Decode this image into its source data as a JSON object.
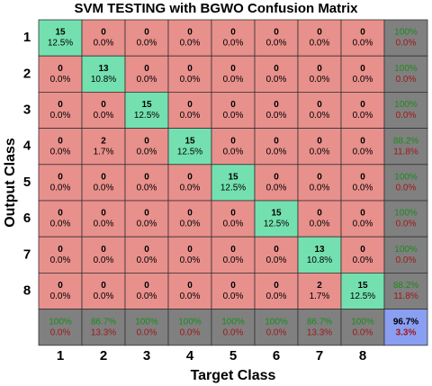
{
  "chart_data": {
    "type": "confusion_matrix",
    "title": "SVM TESTING with BGWO Confusion Matrix",
    "xlabel": "Target Class",
    "ylabel": "Output Class",
    "categories": [
      "1",
      "2",
      "3",
      "4",
      "5",
      "6",
      "7",
      "8"
    ],
    "counts": [
      [
        15,
        0,
        0,
        0,
        0,
        0,
        0,
        0
      ],
      [
        0,
        13,
        0,
        0,
        0,
        0,
        0,
        0
      ],
      [
        0,
        0,
        15,
        0,
        0,
        0,
        0,
        0
      ],
      [
        0,
        2,
        0,
        15,
        0,
        0,
        0,
        0
      ],
      [
        0,
        0,
        0,
        0,
        15,
        0,
        0,
        0
      ],
      [
        0,
        0,
        0,
        0,
        0,
        15,
        0,
        0
      ],
      [
        0,
        0,
        0,
        0,
        0,
        0,
        13,
        0
      ],
      [
        0,
        0,
        0,
        0,
        0,
        0,
        2,
        15
      ]
    ],
    "percents": [
      [
        "12.5%",
        "0.0%",
        "0.0%",
        "0.0%",
        "0.0%",
        "0.0%",
        "0.0%",
        "0.0%"
      ],
      [
        "0.0%",
        "10.8%",
        "0.0%",
        "0.0%",
        "0.0%",
        "0.0%",
        "0.0%",
        "0.0%"
      ],
      [
        "0.0%",
        "0.0%",
        "12.5%",
        "0.0%",
        "0.0%",
        "0.0%",
        "0.0%",
        "0.0%"
      ],
      [
        "0.0%",
        "1.7%",
        "0.0%",
        "12.5%",
        "0.0%",
        "0.0%",
        "0.0%",
        "0.0%"
      ],
      [
        "0.0%",
        "0.0%",
        "0.0%",
        "0.0%",
        "12.5%",
        "0.0%",
        "0.0%",
        "0.0%"
      ],
      [
        "0.0%",
        "0.0%",
        "0.0%",
        "0.0%",
        "0.0%",
        "12.5%",
        "0.0%",
        "0.0%"
      ],
      [
        "0.0%",
        "0.0%",
        "0.0%",
        "0.0%",
        "0.0%",
        "0.0%",
        "10.8%",
        "0.0%"
      ],
      [
        "0.0%",
        "0.0%",
        "0.0%",
        "0.0%",
        "0.0%",
        "0.0%",
        "1.7%",
        "12.5%"
      ]
    ],
    "row_summary": [
      [
        "100%",
        "0.0%"
      ],
      [
        "100%",
        "0.0%"
      ],
      [
        "100%",
        "0.0%"
      ],
      [
        "88.2%",
        "11.8%"
      ],
      [
        "100%",
        "0.0%"
      ],
      [
        "100%",
        "0.0%"
      ],
      [
        "100%",
        "0.0%"
      ],
      [
        "88.2%",
        "11.8%"
      ]
    ],
    "col_summary": [
      [
        "100%",
        "0.0%"
      ],
      [
        "86.7%",
        "13.3%"
      ],
      [
        "100%",
        "0.0%"
      ],
      [
        "100%",
        "0.0%"
      ],
      [
        "100%",
        "0.0%"
      ],
      [
        "100%",
        "0.0%"
      ],
      [
        "86.7%",
        "13.3%"
      ],
      [
        "100%",
        "0.0%"
      ]
    ],
    "total": [
      "96.7%",
      "3.3%"
    ],
    "colors": {
      "correct": "#74e0b0",
      "wrong": "#e8908c",
      "summary": "#808080",
      "total": "#8a9ef2",
      "good_text": "#1a8a1a",
      "bad_text": "#a01818"
    }
  }
}
